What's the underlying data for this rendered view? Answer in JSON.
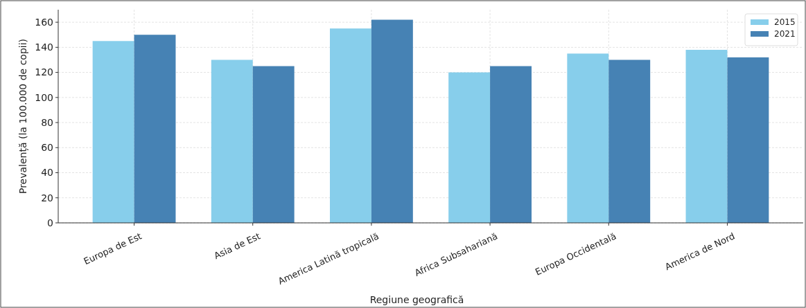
{
  "chart_data": {
    "type": "bar",
    "xlabel": "Regiune geografică",
    "ylabel": "Prevalență (la 100.000 de copii)",
    "categories": [
      "Europa de Est",
      "Asia de Est",
      "America Latină tropicală",
      "Africa Subsahariană",
      "Europa Occidentală",
      "America de Nord"
    ],
    "series": [
      {
        "name": "2015",
        "color": "#87ceeb",
        "values": [
          145,
          130,
          155,
          120,
          135,
          138
        ]
      },
      {
        "name": "2021",
        "color": "#4682b4",
        "values": [
          150,
          125,
          162,
          125,
          130,
          132
        ]
      }
    ],
    "ylim": [
      0,
      170
    ],
    "yticks": [
      0,
      20,
      40,
      60,
      80,
      100,
      120,
      140,
      160
    ],
    "grid": true,
    "legend": "top right"
  }
}
